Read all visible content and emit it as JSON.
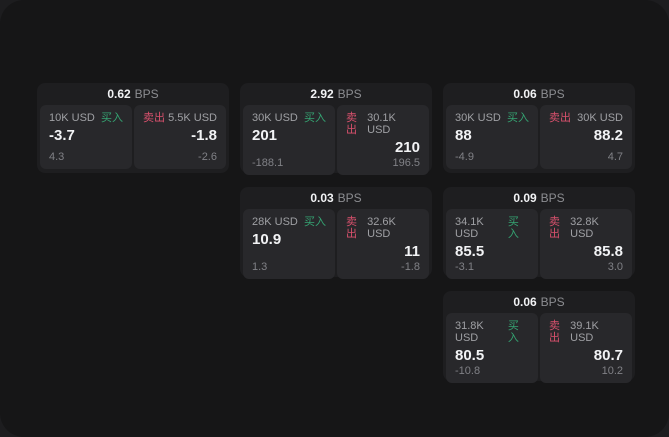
{
  "labels": {
    "bps_unit": "BPS",
    "buy": "买入",
    "sell": "卖出"
  },
  "colors": {
    "backdrop": "#1d1d1f",
    "page_bg": "#161617",
    "card_bg": "#1e1e20",
    "panel_bg": "#28282b",
    "accent_buy": "#35a372",
    "accent_sell": "#d9516d",
    "text_bright": "#f2f3f5",
    "text_label": "#9fa0a4",
    "text_dim": "#808186"
  },
  "cards": [
    {
      "col": 1,
      "row": 1,
      "bps_value": "0.62",
      "buy": {
        "notional": "10K USD",
        "value": "-3.7",
        "sub": "4.3"
      },
      "sell": {
        "notional": "5.5K USD",
        "value": "-1.8",
        "sub": "-2.6"
      }
    },
    {
      "col": 2,
      "row": 1,
      "bps_value": "2.92",
      "buy": {
        "notional": "30K USD",
        "value": "201",
        "sub": "-188.1"
      },
      "sell": {
        "notional": "30.1K USD",
        "value": "210",
        "sub": "196.5"
      }
    },
    {
      "col": 3,
      "row": 1,
      "bps_value": "0.06",
      "buy": {
        "notional": "30K USD",
        "value": "88",
        "sub": "-4.9"
      },
      "sell": {
        "notional": "30K USD",
        "value": "88.2",
        "sub": "4.7"
      }
    },
    {
      "col": 2,
      "row": 2,
      "bps_value": "0.03",
      "buy": {
        "notional": "28K USD",
        "value": "10.9",
        "sub": "1.3"
      },
      "sell": {
        "notional": "32.6K USD",
        "value": "11",
        "sub": "-1.8"
      }
    },
    {
      "col": 3,
      "row": 2,
      "bps_value": "0.09",
      "buy": {
        "notional": "34.1K USD",
        "value": "85.5",
        "sub": "-3.1"
      },
      "sell": {
        "notional": "32.8K USD",
        "value": "85.8",
        "sub": "3.0"
      }
    },
    {
      "col": 3,
      "row": 3,
      "bps_value": "0.06",
      "buy": {
        "notional": "31.8K USD",
        "value": "80.5",
        "sub": "-10.8"
      },
      "sell": {
        "notional": "39.1K USD",
        "value": "80.7",
        "sub": "10.2"
      }
    }
  ]
}
